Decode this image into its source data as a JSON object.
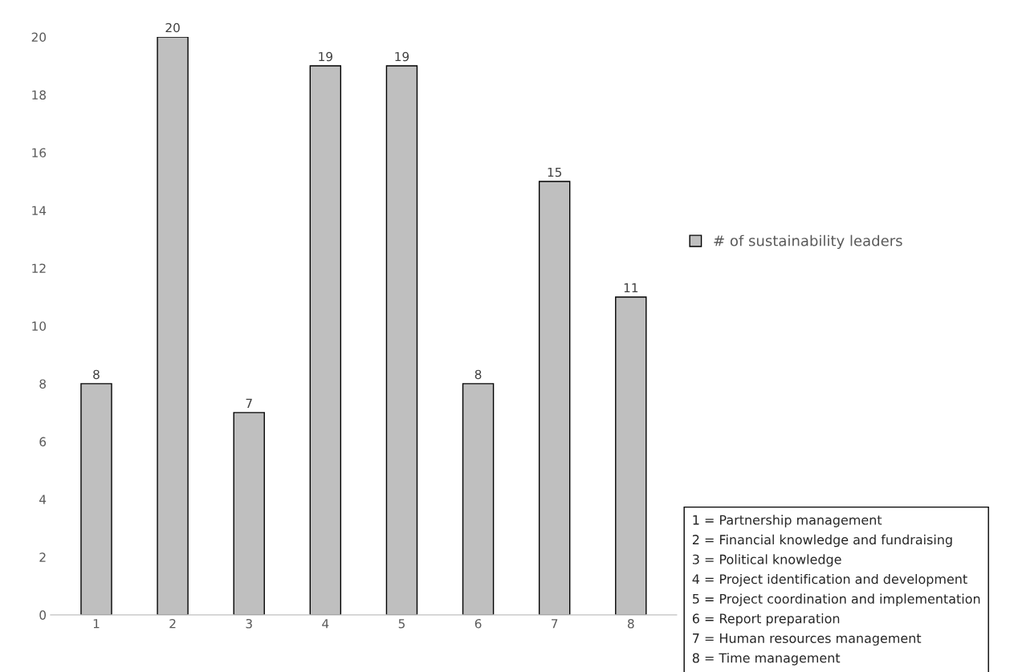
{
  "chart_data": {
    "type": "bar",
    "categories": [
      "1",
      "2",
      "3",
      "4",
      "5",
      "6",
      "7",
      "8"
    ],
    "series": [
      {
        "name": "# of sustainability leaders",
        "color": "#bfbfbf",
        "values": [
          8,
          20,
          7,
          19,
          19,
          8,
          15,
          11
        ]
      }
    ],
    "ylim": [
      0,
      20
    ],
    "yticks": [
      0,
      2,
      4,
      6,
      8,
      10,
      12,
      14,
      16,
      18,
      20
    ],
    "data_labels": true,
    "grid": false,
    "legend": "right",
    "annotations": [
      "1 = Partnership management",
      "2 = Financial knowledge and fundraising",
      "3 = Political knowledge",
      "4 = Project identification and development",
      "5 = Project coordination and implementation",
      "6 = Report preparation",
      "7 = Human resources management",
      "8 = Time management"
    ]
  }
}
